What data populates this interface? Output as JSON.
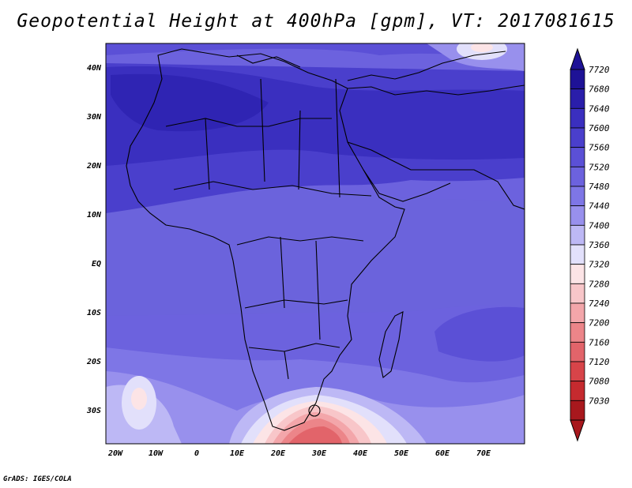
{
  "title": "Geopotential Height at 400hPa [gpm], VT: 2017081615",
  "credit": "GrADS: IGES/COLA",
  "map": {
    "lat_labels": [
      "40N",
      "30N",
      "20N",
      "10N",
      "EQ",
      "10S",
      "20S",
      "30S"
    ],
    "lon_labels": [
      "20W",
      "10W",
      "0",
      "10E",
      "20E",
      "30E",
      "40E",
      "50E",
      "60E",
      "70E"
    ]
  },
  "colorbar": {
    "levels": [
      "7720",
      "7680",
      "7640",
      "7600",
      "7560",
      "7520",
      "7480",
      "7440",
      "7400",
      "7360",
      "7320",
      "7280",
      "7240",
      "7200",
      "7160",
      "7120",
      "7080",
      "7030"
    ],
    "colors": [
      "#1e1296",
      "#2a1eaa",
      "#3a2fbf",
      "#4a3fcc",
      "#5b50d6",
      "#6c62de",
      "#7e76e6",
      "#9890ed",
      "#bdb8f5",
      "#e2e0fb",
      "#fce4e6",
      "#f8c6c9",
      "#f3a6aa",
      "#ec8589",
      "#e2646a",
      "#d74449",
      "#c52a2f",
      "#a8181d"
    ]
  }
}
